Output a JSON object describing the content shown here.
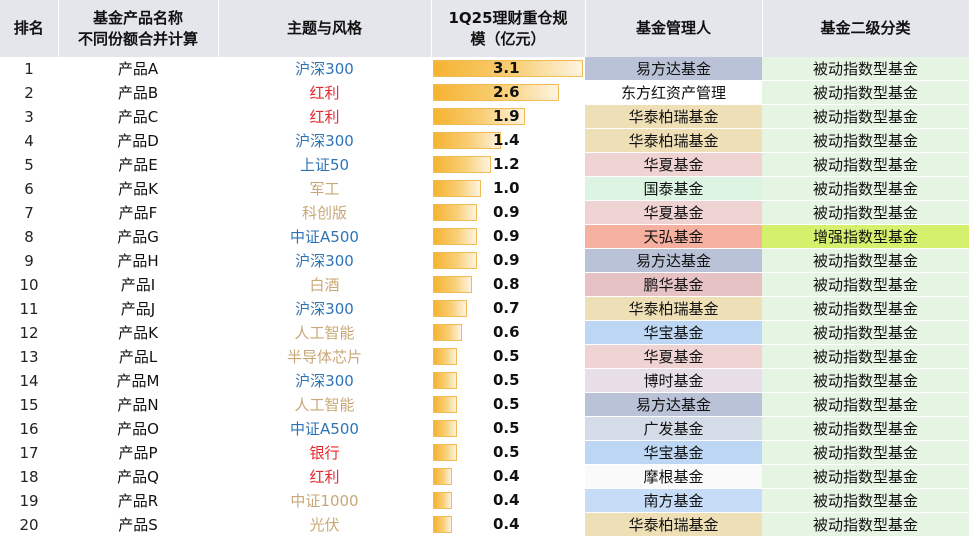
{
  "headers": {
    "rank": "排名",
    "product_line1": "基金产品名称",
    "product_line2": "不同份额合并计算",
    "theme": "主题与风格",
    "scale_line1": "1Q25理财重仓规",
    "scale_line2": "模（亿元）",
    "manager": "基金管理人",
    "classification": "基金二级分类"
  },
  "colors": {
    "theme_blue": "#2e74b5",
    "theme_red": "#e8262b",
    "theme_tan": "#c8a877",
    "bar_fill": "#f5b331",
    "mgr_yifangda": "#b9c2d6",
    "mgr_dongfanghong": "#ffffff",
    "mgr_huatai": "#eedfb6",
    "mgr_huaxia": "#efd3d3",
    "mgr_guotai": "#dcf5e2",
    "mgr_tianhong": "#f5b09f",
    "mgr_penghua": "#e6c2c5",
    "mgr_huabao": "#bcd6f4",
    "mgr_boshi": "#e8dee8",
    "mgr_guangfa": "#d4dce8",
    "mgr_mogen": "#fafafa",
    "mgr_nanfang": "#c7dcf6",
    "cls_passive": "#e6f5e3",
    "cls_enhanced": "#d5f06d"
  },
  "scale_max": 3.1,
  "rows": [
    {
      "rank": "1",
      "product": "产品A",
      "theme": "沪深300",
      "theme_color": "#2e74b5",
      "scale": 3.1,
      "scale_label": "3.1",
      "manager": "易方达基金",
      "manager_bg": "#b9c2d6",
      "classification": "被动指数型基金",
      "class_bg": "#e6f5e3"
    },
    {
      "rank": "2",
      "product": "产品B",
      "theme": "红利",
      "theme_color": "#e8262b",
      "scale": 2.6,
      "scale_label": "2.6",
      "manager": "东方红资产管理",
      "manager_bg": "#ffffff",
      "classification": "被动指数型基金",
      "class_bg": "#e6f5e3"
    },
    {
      "rank": "3",
      "product": "产品C",
      "theme": "红利",
      "theme_color": "#e8262b",
      "scale": 1.9,
      "scale_label": "1.9",
      "manager": "华泰柏瑞基金",
      "manager_bg": "#eedfb6",
      "classification": "被动指数型基金",
      "class_bg": "#e6f5e3"
    },
    {
      "rank": "4",
      "product": "产品D",
      "theme": "沪深300",
      "theme_color": "#2e74b5",
      "scale": 1.4,
      "scale_label": "1.4",
      "manager": "华泰柏瑞基金",
      "manager_bg": "#eedfb6",
      "classification": "被动指数型基金",
      "class_bg": "#e6f5e3"
    },
    {
      "rank": "5",
      "product": "产品E",
      "theme": "上证50",
      "theme_color": "#2e74b5",
      "scale": 1.2,
      "scale_label": "1.2",
      "manager": "华夏基金",
      "manager_bg": "#efd3d3",
      "classification": "被动指数型基金",
      "class_bg": "#e6f5e3"
    },
    {
      "rank": "6",
      "product": "产品K",
      "theme": "军工",
      "theme_color": "#c8a877",
      "scale": 1.0,
      "scale_label": "1.0",
      "manager": "国泰基金",
      "manager_bg": "#dcf5e2",
      "classification": "被动指数型基金",
      "class_bg": "#e6f5e3"
    },
    {
      "rank": "7",
      "product": "产品F",
      "theme": "科创版",
      "theme_color": "#c8a877",
      "scale": 0.9,
      "scale_label": "0.9",
      "manager": "华夏基金",
      "manager_bg": "#efd3d3",
      "classification": "被动指数型基金",
      "class_bg": "#e6f5e3"
    },
    {
      "rank": "8",
      "product": "产品G",
      "theme": "中证A500",
      "theme_color": "#2e74b5",
      "scale": 0.9,
      "scale_label": "0.9",
      "manager": "天弘基金",
      "manager_bg": "#f5b09f",
      "classification": "增强指数型基金",
      "class_bg": "#d5f06d"
    },
    {
      "rank": "9",
      "product": "产品H",
      "theme": "沪深300",
      "theme_color": "#2e74b5",
      "scale": 0.9,
      "scale_label": "0.9",
      "manager": "易方达基金",
      "manager_bg": "#b9c2d6",
      "classification": "被动指数型基金",
      "class_bg": "#e6f5e3"
    },
    {
      "rank": "10",
      "product": "产品I",
      "theme": "白酒",
      "theme_color": "#c8a877",
      "scale": 0.8,
      "scale_label": "0.8",
      "manager": "鹏华基金",
      "manager_bg": "#e6c2c5",
      "classification": "被动指数型基金",
      "class_bg": "#e6f5e3"
    },
    {
      "rank": "11",
      "product": "产品J",
      "theme": "沪深300",
      "theme_color": "#2e74b5",
      "scale": 0.7,
      "scale_label": "0.7",
      "manager": "华泰柏瑞基金",
      "manager_bg": "#eedfb6",
      "classification": "被动指数型基金",
      "class_bg": "#e6f5e3"
    },
    {
      "rank": "12",
      "product": "产品K",
      "theme": "人工智能",
      "theme_color": "#c8a877",
      "scale": 0.6,
      "scale_label": "0.6",
      "manager": "华宝基金",
      "manager_bg": "#bcd6f4",
      "classification": "被动指数型基金",
      "class_bg": "#e6f5e3"
    },
    {
      "rank": "13",
      "product": "产品L",
      "theme": "半导体芯片",
      "theme_color": "#c8a877",
      "scale": 0.5,
      "scale_label": "0.5",
      "manager": "华夏基金",
      "manager_bg": "#efd3d3",
      "classification": "被动指数型基金",
      "class_bg": "#e6f5e3"
    },
    {
      "rank": "14",
      "product": "产品M",
      "theme": "沪深300",
      "theme_color": "#2e74b5",
      "scale": 0.5,
      "scale_label": "0.5",
      "manager": "博时基金",
      "manager_bg": "#e8dee8",
      "classification": "被动指数型基金",
      "class_bg": "#e6f5e3"
    },
    {
      "rank": "15",
      "product": "产品N",
      "theme": "人工智能",
      "theme_color": "#c8a877",
      "scale": 0.5,
      "scale_label": "0.5",
      "manager": "易方达基金",
      "manager_bg": "#b9c2d6",
      "classification": "被动指数型基金",
      "class_bg": "#e6f5e3"
    },
    {
      "rank": "16",
      "product": "产品O",
      "theme": "中证A500",
      "theme_color": "#2e74b5",
      "scale": 0.5,
      "scale_label": "0.5",
      "manager": "广发基金",
      "manager_bg": "#d4dce8",
      "classification": "被动指数型基金",
      "class_bg": "#e6f5e3"
    },
    {
      "rank": "17",
      "product": "产品P",
      "theme": "银行",
      "theme_color": "#e8262b",
      "scale": 0.5,
      "scale_label": "0.5",
      "manager": "华宝基金",
      "manager_bg": "#bcd6f4",
      "classification": "被动指数型基金",
      "class_bg": "#e6f5e3"
    },
    {
      "rank": "18",
      "product": "产品Q",
      "theme": "红利",
      "theme_color": "#e8262b",
      "scale": 0.4,
      "scale_label": "0.4",
      "manager": "摩根基金",
      "manager_bg": "#fafafa",
      "classification": "被动指数型基金",
      "class_bg": "#e6f5e3"
    },
    {
      "rank": "19",
      "product": "产品R",
      "theme": "中证1000",
      "theme_color": "#c8a877",
      "scale": 0.4,
      "scale_label": "0.4",
      "manager": "南方基金",
      "manager_bg": "#c7dcf6",
      "classification": "被动指数型基金",
      "class_bg": "#e6f5e3"
    },
    {
      "rank": "20",
      "product": "产品S",
      "theme": "光伏",
      "theme_color": "#c8a877",
      "scale": 0.4,
      "scale_label": "0.4",
      "manager": "华泰柏瑞基金",
      "manager_bg": "#eedfb6",
      "classification": "被动指数型基金",
      "class_bg": "#e6f5e3"
    }
  ]
}
